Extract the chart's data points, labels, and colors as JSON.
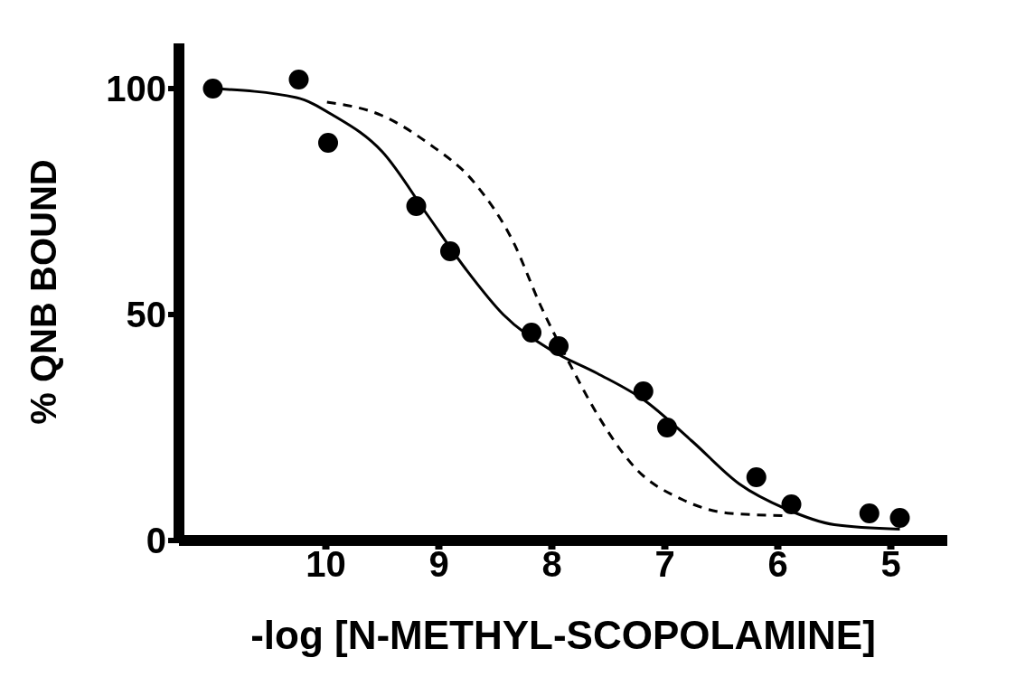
{
  "chart_data": {
    "type": "scatter",
    "xlabel": "-log [N-METHYL-SCOPOLAMINE]",
    "ylabel": "% QNB BOUND",
    "xlim": [
      11.3,
      4.5
    ],
    "xticks": [
      10,
      9,
      8,
      7,
      6,
      5
    ],
    "ylim": [
      0,
      110
    ],
    "yticks": [
      0,
      50,
      100
    ],
    "grid": false,
    "legend": false,
    "series": [
      {
        "type": "scatter",
        "color": "#000000",
        "marker": "circle",
        "x": [
          11.0,
          10.24,
          9.98,
          9.2,
          8.9,
          8.18,
          7.94,
          7.19,
          6.98,
          6.19,
          5.88,
          5.19,
          4.92
        ],
        "values": [
          100,
          102,
          88,
          74,
          64,
          46,
          43,
          33,
          25,
          14,
          8,
          6,
          5
        ]
      },
      {
        "type": "line",
        "color": "#000000",
        "line_style": "solid",
        "marker": "none",
        "x": [
          11.0,
          10.26,
          9.93,
          9.5,
          9.1,
          8.76,
          8.43,
          8.0,
          7.6,
          7.18,
          6.76,
          6.34,
          5.93,
          5.5,
          4.92
        ],
        "values": [
          100,
          98,
          94,
          86,
          72,
          60,
          50,
          42,
          37,
          31,
          22,
          12.5,
          7,
          3.5,
          2.5
        ]
      },
      {
        "type": "line",
        "color": "#000000",
        "line_style": "dashed",
        "marker": "none",
        "x": [
          9.99,
          9.5,
          9.1,
          8.68,
          8.34,
          8.1,
          7.84,
          7.6,
          7.26,
          6.84,
          6.42,
          5.93
        ],
        "values": [
          97,
          94,
          88,
          79,
          66,
          52,
          39,
          28,
          16,
          9,
          6,
          5.5
        ]
      }
    ]
  }
}
